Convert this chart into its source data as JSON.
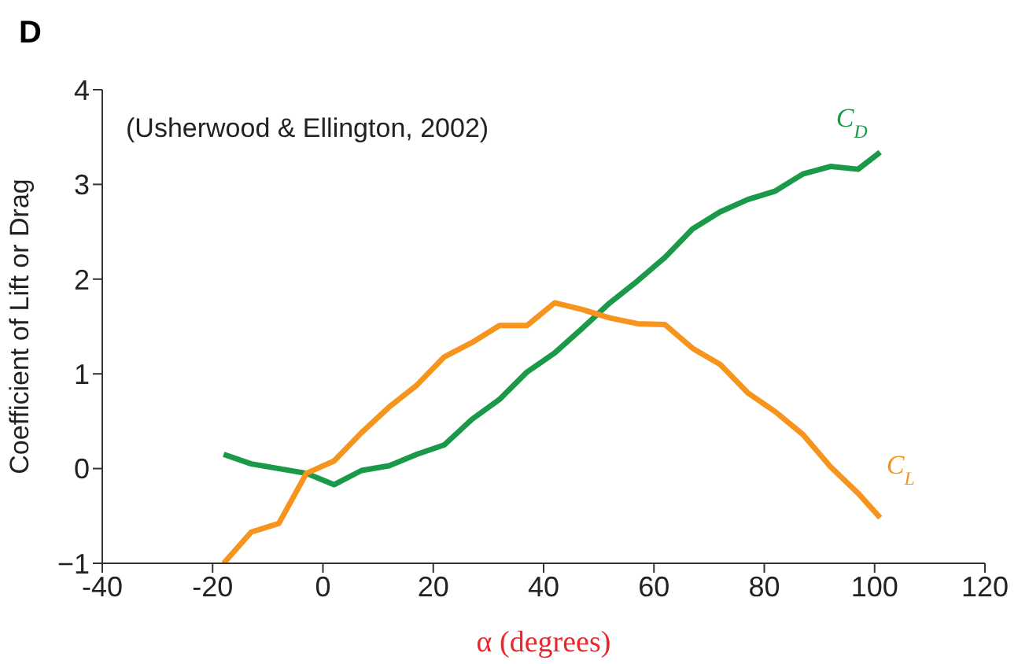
{
  "chart_data": {
    "type": "line",
    "title": "D",
    "annotations": [
      "(Usherwood & Ellington, 2002)"
    ],
    "xlabel": "α (degrees)",
    "ylabel": "Coefficient of Lift or Drag",
    "x": [
      -18,
      -13,
      -8,
      -3,
      2,
      7,
      12,
      17,
      22,
      27,
      32,
      37,
      42,
      47,
      52,
      57,
      62,
      67,
      72,
      77,
      82,
      87,
      92,
      97,
      101
    ],
    "series": [
      {
        "name": "C$_{D}$",
        "color": "#1a9a48",
        "values": [
          0.15,
          0.05,
          0.0,
          -0.05,
          -0.17,
          -0.02,
          0.03,
          0.15,
          0.25,
          0.52,
          0.73,
          1.02,
          1.22,
          1.48,
          1.75,
          1.98,
          2.23,
          2.53,
          2.71,
          2.84,
          2.93,
          3.11,
          3.19,
          3.16,
          3.34
        ]
      },
      {
        "name": "C$_{L}$",
        "color": "#f7941d",
        "values": [
          -1.0,
          -0.67,
          -0.58,
          -0.05,
          0.08,
          0.38,
          0.65,
          0.88,
          1.18,
          1.33,
          1.51,
          1.51,
          1.75,
          1.68,
          1.59,
          1.53,
          1.52,
          1.27,
          1.1,
          0.8,
          0.6,
          0.36,
          0.02,
          -0.26,
          -0.52
        ]
      }
    ],
    "xlim": [
      -40,
      120
    ],
    "xticks": [
      -40,
      -20,
      0,
      20,
      40,
      60,
      80,
      100,
      120
    ],
    "ylim": [
      -1,
      4
    ],
    "yticks": [
      {
        "value": -1,
        "label": "−1"
      },
      0,
      1,
      2,
      3,
      4
    ],
    "grid": false,
    "legend": false,
    "marker": "none",
    "line_style": "solid"
  }
}
